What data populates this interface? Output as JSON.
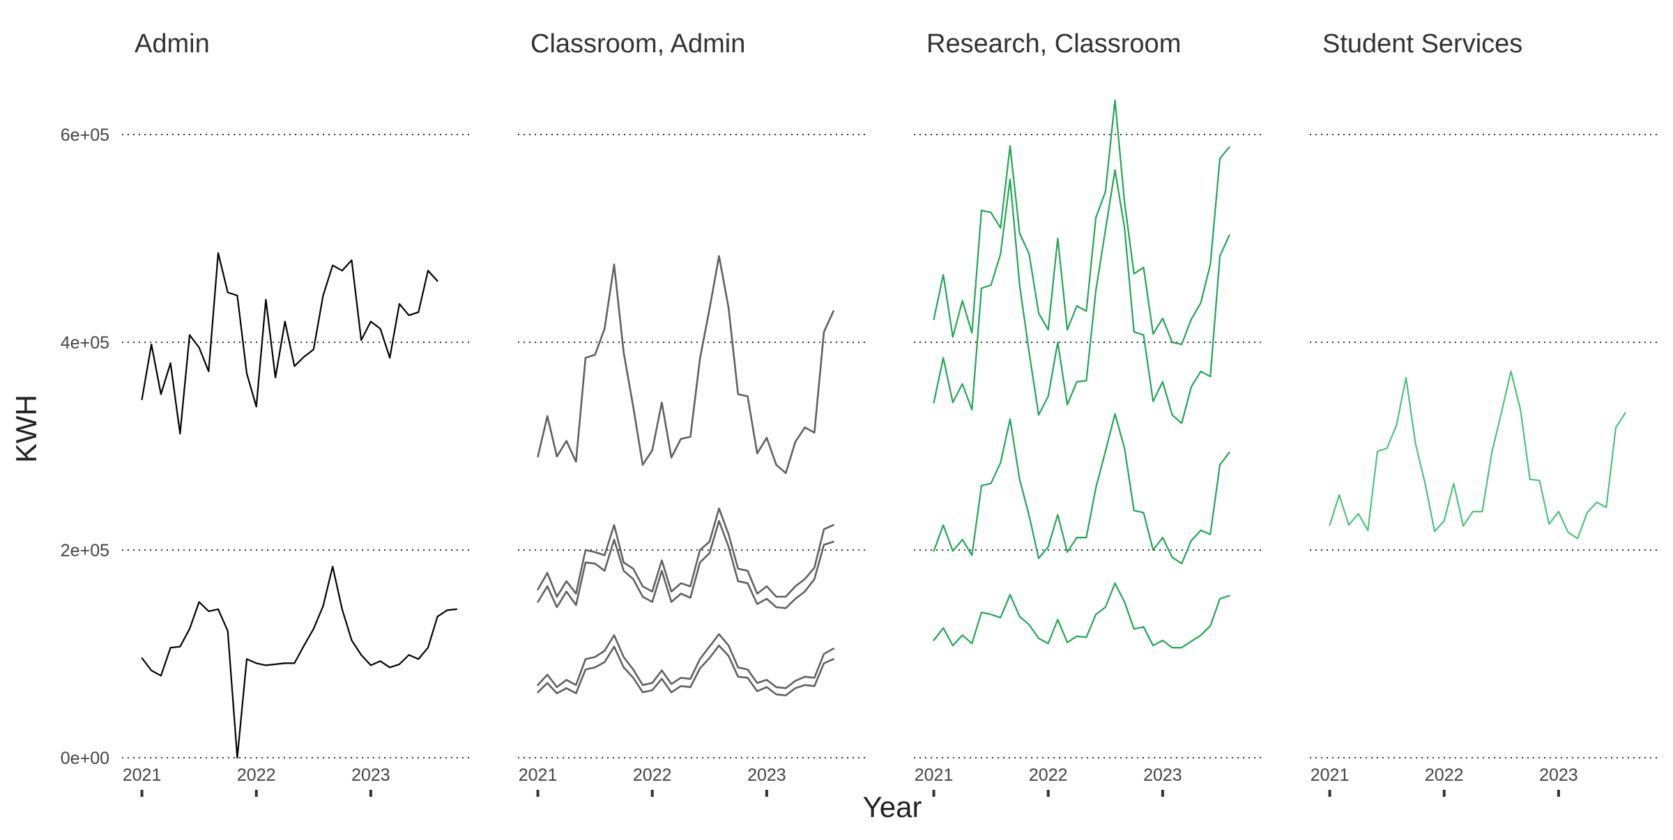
{
  "chart_data": {
    "type": "line",
    "ylabel": "KWH",
    "xlabel": "Year",
    "ylim": [
      0,
      630000
    ],
    "yticks": [
      0,
      200000,
      400000,
      600000
    ],
    "ytick_labels": [
      "0e+00",
      "2e+05",
      "4e+05",
      "6e+05"
    ],
    "xlim": [
      2020.96,
      2023.75
    ],
    "xticks": [
      2021,
      2022,
      2023
    ],
    "xtick_labels": [
      "2021",
      "2022",
      "2023"
    ],
    "grid": "horizontal-dotted",
    "legend": "none",
    "x_start": 2021,
    "x_step_months": 1,
    "colors": {
      "Admin": "#000000",
      "Classroom, Admin": "#606060",
      "Research, Classroom": "#1fa655",
      "Student Services": "#4cc27c"
    },
    "facets": [
      {
        "title": "Admin",
        "color": "#000000",
        "series": [
          {
            "values": [
              345000,
              398000,
              350000,
              380000,
              312000,
              407000,
              395000,
              372000,
              486000,
              448000,
              445000,
              370000,
              338000,
              441000,
              366000,
              420000,
              377000,
              386000,
              393000,
              445000,
              474000,
              469000,
              479000,
              402000,
              420000,
              413000,
              385000,
              437000,
              426000,
              429000,
              469000,
              459000
            ]
          },
          {
            "values": [
              96000,
              84000,
              79000,
              106000,
              107000,
              124000,
              150000,
              141000,
              143000,
              122000,
              0,
              95000,
              91000,
              89000,
              90000,
              91000,
              91000,
              108000,
              124000,
              146000,
              184000,
              143000,
              113000,
              99000,
              89000,
              93000,
              87000,
              90000,
              99000,
              95000,
              106000,
              136000,
              142000,
              143000
            ]
          }
        ]
      },
      {
        "title": "Classroom, Admin",
        "color": "#606060",
        "series": [
          {
            "values": [
              290000,
              329000,
              290000,
              305000,
              285000,
              385000,
              388000,
              413000,
              475000,
              390000,
              338000,
              282000,
              296000,
              342000,
              289000,
              307000,
              309000,
              384000,
              432000,
              483000,
              433000,
              350000,
              348000,
              293000,
              308000,
              282000,
              274000,
              304000,
              318000,
              313000,
              410000,
              430000
            ]
          },
          {
            "values": [
              162000,
              178000,
              155000,
              170000,
              158000,
              200000,
              198000,
              195000,
              224000,
              188000,
              182000,
              165000,
              160000,
              190000,
              160000,
              168000,
              165000,
              200000,
              208000,
              240000,
              215000,
              182000,
              180000,
              158000,
              165000,
              155000,
              155000,
              165000,
              172000,
              183000,
              220000,
              224000
            ]
          },
          {
            "values": [
              150000,
              165000,
              145000,
              160000,
              147000,
              188000,
              187000,
              180000,
              210000,
              180000,
              172000,
              155000,
              150000,
              180000,
              150000,
              158000,
              154000,
              188000,
              197000,
              228000,
              203000,
              170000,
              168000,
              148000,
              153000,
              145000,
              144000,
              153000,
              160000,
              172000,
              205000,
              208000
            ]
          },
          {
            "values": [
              70000,
              80000,
              68000,
              75000,
              70000,
              95000,
              97000,
              103000,
              118000,
              97000,
              85000,
              70000,
              72000,
              84000,
              71000,
              77000,
              76000,
              95000,
              107000,
              119000,
              108000,
              87000,
              85000,
              72000,
              75000,
              68000,
              67000,
              74000,
              78000,
              77000,
              100000,
              105000
            ]
          },
          {
            "values": [
              63000,
              72000,
              62000,
              67000,
              62000,
              85000,
              87000,
              92000,
              107000,
              87000,
              77000,
              63000,
              65000,
              76000,
              63000,
              69000,
              68000,
              86000,
              96000,
              108000,
              98000,
              78000,
              77000,
              64000,
              68000,
              61000,
              60000,
              67000,
              70000,
              69000,
              91000,
              95000
            ]
          }
        ]
      },
      {
        "title": "Research, Classroom",
        "color": "#1fa655",
        "series": [
          {
            "values": [
              422000,
              465000,
              405000,
              440000,
              409000,
              527000,
              525000,
              510000,
              589000,
              505000,
              485000,
              428000,
              412000,
              500000,
              412000,
              435000,
              430000,
              520000,
              545000,
              633000,
              535000,
              466000,
              472000,
              408000,
              423000,
              400000,
              398000,
              422000,
              438000,
              475000,
              577000,
              588000
            ]
          },
          {
            "values": [
              342000,
              385000,
              342000,
              360000,
              335000,
              452000,
              455000,
              485000,
              557000,
              455000,
              390000,
              330000,
              348000,
              400000,
              340000,
              362000,
              363000,
              450000,
              508000,
              566000,
              510000,
              410000,
              407000,
              343000,
              362000,
              330000,
              322000,
              357000,
              372000,
              367000,
              483000,
              503000
            ]
          },
          {
            "values": [
              199000,
              224000,
              199000,
              210000,
              195000,
              262000,
              264000,
              284000,
              326000,
              268000,
              233000,
              192000,
              203000,
              234000,
              198000,
              212000,
              212000,
              260000,
              295000,
              331000,
              298000,
              238000,
              236000,
              200000,
              212000,
              193000,
              187000,
              209000,
              219000,
              215000,
              282000,
              294000
            ]
          },
          {
            "values": [
              113000,
              125000,
              108000,
              118000,
              110000,
              140000,
              138000,
              135000,
              157000,
              136000,
              128000,
              115000,
              110000,
              133000,
              111000,
              117000,
              116000,
              138000,
              145000,
              168000,
              150000,
              124000,
              126000,
              108000,
              113000,
              106000,
              106000,
              112000,
              118000,
              127000,
              153000,
              156000
            ]
          }
        ]
      },
      {
        "title": "Student Services",
        "color": "#4cc27c",
        "series": [
          {
            "values": [
              224000,
              253000,
              224000,
              235000,
              219000,
              295000,
              298000,
              320000,
              366000,
              302000,
              264000,
              218000,
              228000,
              264000,
              223000,
              237000,
              237000,
              294000,
              332000,
              372000,
              335000,
              268000,
              267000,
              225000,
              237000,
              217000,
              211000,
              236000,
              246000,
              241000,
              318000,
              332000
            ]
          }
        ]
      }
    ]
  }
}
